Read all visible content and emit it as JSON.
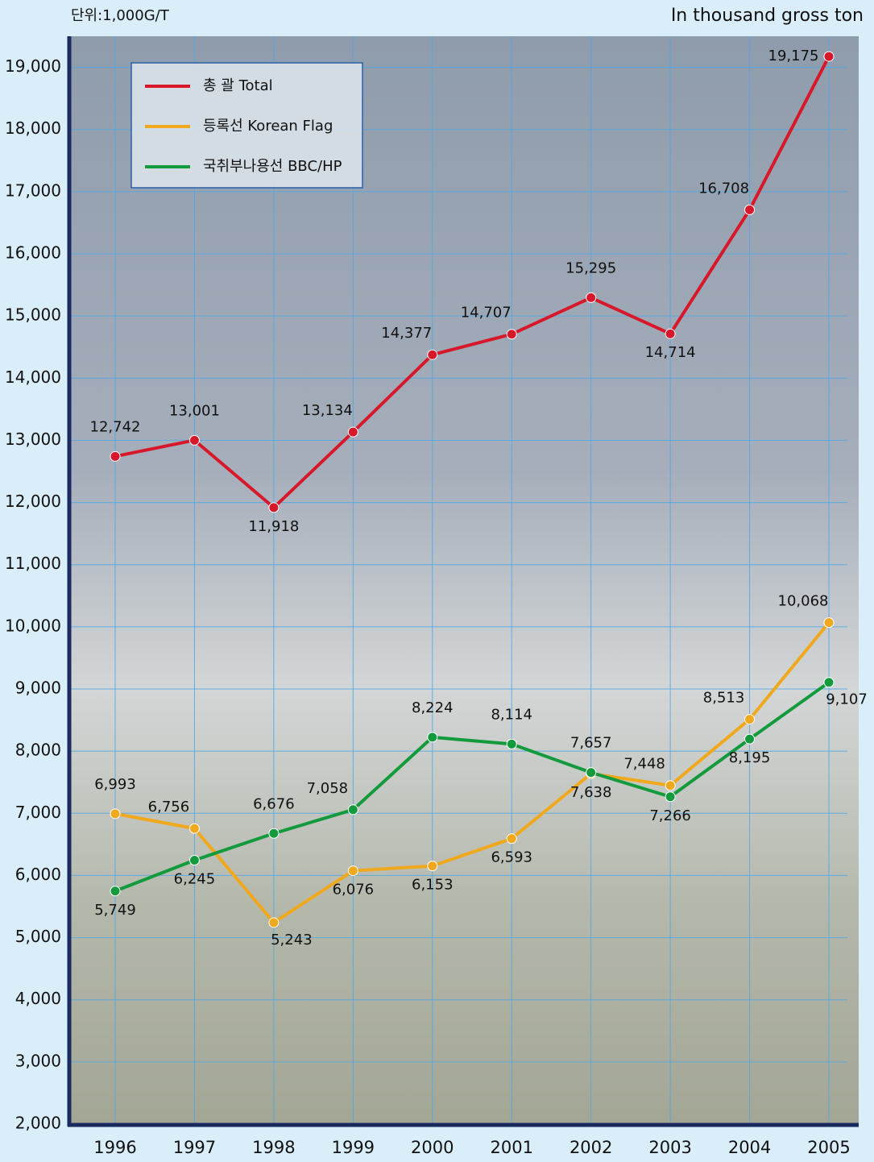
{
  "chart_data": {
    "type": "line",
    "unit_label": "단위:1,000G/T",
    "unit_label_en": "In thousand gross ton",
    "categories": [
      "1996",
      "1997",
      "1998",
      "1999",
      "2000",
      "2001",
      "2002",
      "2003",
      "2004",
      "2005"
    ],
    "series": [
      {
        "name": "총 괄 Total",
        "color": "#d7182a",
        "values": [
          12742,
          13001,
          11918,
          13134,
          14377,
          14707,
          15295,
          14714,
          16708,
          19175
        ],
        "value_labels": [
          "12,742",
          "13,001",
          "11,918",
          "13,134",
          "14,377",
          "14,707",
          "15,295",
          "14,714",
          "16,708",
          "19,175"
        ]
      },
      {
        "name": "등록선 Korean Flag",
        "color": "#f0a81c",
        "values": [
          6993,
          6756,
          5243,
          6076,
          6153,
          6593,
          7638,
          7448,
          8513,
          10068
        ],
        "value_labels": [
          "6,993",
          "6,756",
          "5,243",
          "6,076",
          "6,153",
          "6,593",
          "7,638",
          "7,448",
          "8,513",
          "10,068"
        ]
      },
      {
        "name": "국취부나용선 BBC/HP",
        "color": "#129a3c",
        "values": [
          5749,
          6245,
          6676,
          7058,
          8224,
          8114,
          7657,
          7266,
          8195,
          9107
        ],
        "value_labels": [
          "5,749",
          "6,245",
          "6,676",
          "7,058",
          "8,224",
          "8,114",
          "7,657",
          "7,266",
          "8,195",
          "9,107"
        ]
      }
    ],
    "ylim": [
      2000,
      19500
    ],
    "yticks": [
      {
        "value": 2000,
        "label": "2,000"
      },
      {
        "value": 3000,
        "label": "3,000"
      },
      {
        "value": 4000,
        "label": "4,000"
      },
      {
        "value": 5000,
        "label": "5,000"
      },
      {
        "value": 6000,
        "label": "6,000"
      },
      {
        "value": 7000,
        "label": "7,000"
      },
      {
        "value": 8000,
        "label": "8,000"
      },
      {
        "value": 9000,
        "label": "9,000"
      },
      {
        "value": 10000,
        "label": "10,000"
      },
      {
        "value": 11000,
        "label": "11,000"
      },
      {
        "value": 12000,
        "label": "12,000"
      },
      {
        "value": 13000,
        "label": "13,000"
      },
      {
        "value": 14000,
        "label": "14,000"
      },
      {
        "value": 15000,
        "label": "15,000"
      },
      {
        "value": 16000,
        "label": "16,000"
      },
      {
        "value": 17000,
        "label": "17,000"
      },
      {
        "value": 18000,
        "label": "18,000"
      },
      {
        "value": 19000,
        "label": "19,000"
      }
    ],
    "grid": true,
    "legend": "upper-left"
  }
}
